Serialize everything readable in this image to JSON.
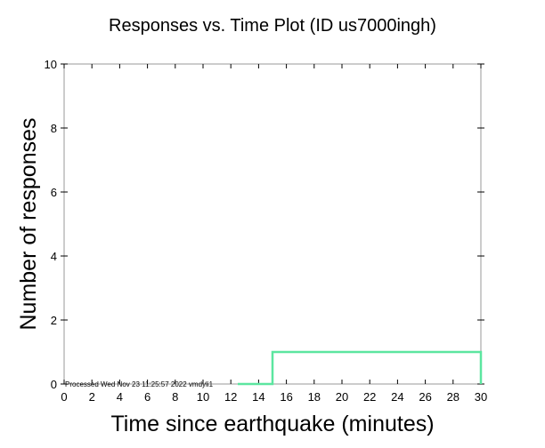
{
  "chart_data": {
    "type": "line",
    "title": "Responses vs. Time Plot (ID us7000ingh)",
    "xlabel": "Time since earthquake (minutes)",
    "ylabel": "Number of responses",
    "xlim": [
      0,
      30
    ],
    "ylim": [
      0,
      10
    ],
    "x_ticks": [
      0,
      2,
      4,
      6,
      8,
      10,
      12,
      14,
      16,
      18,
      20,
      22,
      24,
      26,
      28,
      30
    ],
    "y_ticks": [
      0,
      2,
      4,
      6,
      8,
      10
    ],
    "grid": false,
    "step": true,
    "series": [
      {
        "color": "#5ce6a0",
        "x": [
          12.5,
          15,
          15,
          30,
          30
        ],
        "y": [
          0,
          0,
          1,
          1,
          0
        ]
      }
    ],
    "annotation": "Processed Wed Nov 23 11:25:57 2022 vmdyli1"
  }
}
